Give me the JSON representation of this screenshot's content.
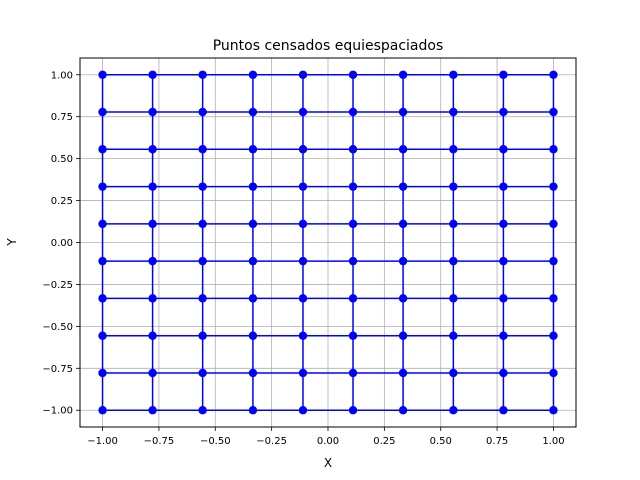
{
  "chart_data": {
    "type": "line",
    "title": "Puntos censados equiespaciados",
    "xlabel": "X",
    "ylabel": "Y",
    "grid": true,
    "xlim": [
      -1.1,
      1.1
    ],
    "ylim": [
      -1.1,
      1.1
    ],
    "xticks": [
      -1.0,
      -0.75,
      -0.5,
      -0.25,
      0.0,
      0.25,
      0.5,
      0.75,
      1.0
    ],
    "xtick_labels": [
      "−1.00",
      "−0.75",
      "−0.50",
      "−0.25",
      "0.00",
      "0.25",
      "0.50",
      "0.75",
      "1.00"
    ],
    "yticks": [
      -1.0,
      -0.75,
      -0.5,
      -0.25,
      0.0,
      0.25,
      0.5,
      0.75,
      1.0
    ],
    "ytick_labels": [
      "−1.00",
      "−0.75",
      "−0.50",
      "−0.25",
      "0.00",
      "0.25",
      "0.50",
      "0.75",
      "1.00"
    ],
    "grid_points_x": [
      -1.0,
      -0.778,
      -0.556,
      -0.333,
      -0.111,
      0.111,
      0.333,
      0.556,
      0.778,
      1.0
    ],
    "grid_points_y": [
      -1.0,
      -0.778,
      -0.556,
      -0.333,
      -0.111,
      0.111,
      0.333,
      0.556,
      0.778,
      1.0
    ],
    "series_color": "#0000ff",
    "marker": "circle"
  }
}
